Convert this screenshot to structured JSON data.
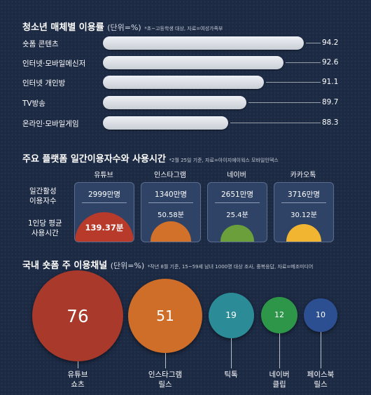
{
  "chart_data": [
    {
      "type": "bar",
      "title": "청소년 매체별 이용률",
      "unit": "(단위=%)",
      "note": "*초~고등학생 대상, 자료=여성가족부",
      "categories": [
        "숏폼 콘텐츠",
        "인터넷·모바일메신저",
        "인터넷 개인방",
        "TV방송",
        "온라인·모바일게임"
      ],
      "values": [
        94.2,
        92.6,
        91.1,
        89.7,
        88.3
      ]
    },
    {
      "type": "table",
      "title": "주요 플랫폼 일간이용자수와 사용시간",
      "note": "*2월 25일 기준, 자료=아이지에이웍스 모바일인덱스",
      "row_labels": [
        "일간활성\n이용자수",
        "1인당 평균\n사용시간"
      ],
      "categories": [
        "유튜브",
        "인스타그램",
        "네이버",
        "카카오톡"
      ],
      "users_text": [
        "2999만명",
        "1340만명",
        "2651만명",
        "3716만명"
      ],
      "time_text": [
        "139.37분",
        "50.58분",
        "25.4분",
        "30.12분"
      ],
      "time_values": [
        139.37,
        50.58,
        25.4,
        30.12
      ],
      "colors": [
        "#b83a2a",
        "#d2722a",
        "#6a9f3c",
        "#f2b531"
      ]
    },
    {
      "type": "bubble",
      "title": "국내 숏폼 주 이용채널",
      "unit": "(단위=%)",
      "note": "*작년 8월 기준, 15~59세 남녀 1000명 대상 조사, 중복응답, 자료=메조미디어",
      "categories": [
        "유튜브\n쇼츠",
        "인스타그램\n릴스",
        "틱톡",
        "네이버\n클립",
        "페이스북\n릴스"
      ],
      "values": [
        76,
        51,
        19,
        12,
        10
      ],
      "colors": [
        "#a9392b",
        "#cf6e28",
        "#2b8b97",
        "#2d9648",
        "#2c4f92"
      ]
    }
  ]
}
